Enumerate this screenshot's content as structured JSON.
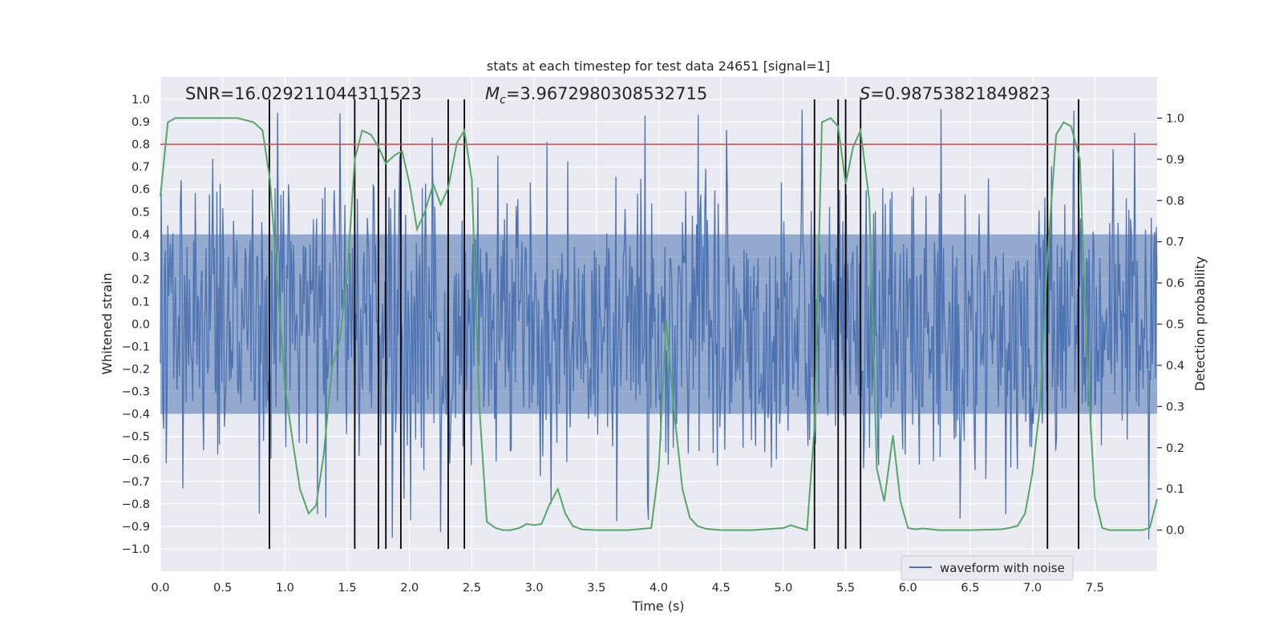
{
  "chart_data": {
    "type": "line",
    "title": "stats at each timestep for test data 24651 [signal=1]",
    "xlabel": "Time (s)",
    "ylabel_left": "Whitened strain",
    "ylabel_right": "Detection probability",
    "xlim": [
      0.0,
      8.0
    ],
    "ylim_left": [
      -1.1,
      1.1
    ],
    "ylim_right": [
      -0.1,
      1.1
    ],
    "x_ticks": [
      "0.0",
      "0.5",
      "1.0",
      "1.5",
      "2.0",
      "2.5",
      "3.0",
      "3.5",
      "4.0",
      "4.5",
      "5.0",
      "5.5",
      "6.0",
      "6.5",
      "7.0",
      "7.5"
    ],
    "x_tick_values": [
      0.0,
      0.5,
      1.0,
      1.5,
      2.0,
      2.5,
      3.0,
      3.5,
      4.0,
      4.5,
      5.0,
      5.5,
      6.0,
      6.5,
      7.0,
      7.5
    ],
    "y_left_ticks": [
      "1.0",
      "0.9",
      "0.8",
      "0.7",
      "0.6",
      "0.5",
      "0.4",
      "0.3",
      "0.2",
      "0.1",
      "0.0",
      "−0.1",
      "−0.2",
      "−0.3",
      "−0.4",
      "−0.5",
      "−0.6",
      "−0.7",
      "−0.8",
      "−0.9",
      "−1.0"
    ],
    "y_left_tick_values": [
      1.0,
      0.9,
      0.8,
      0.7,
      0.6,
      0.5,
      0.4,
      0.3,
      0.2,
      0.1,
      0.0,
      -0.1,
      -0.2,
      -0.3,
      -0.4,
      -0.5,
      -0.6,
      -0.7,
      -0.8,
      -0.9,
      -1.0
    ],
    "y_right_ticks": [
      "1.0",
      "0.9",
      "0.8",
      "0.7",
      "0.6",
      "0.5",
      "0.4",
      "0.3",
      "0.2",
      "0.1",
      "0.0"
    ],
    "y_right_tick_values": [
      1.0,
      0.9,
      0.8,
      0.7,
      0.6,
      0.5,
      0.4,
      0.3,
      0.2,
      0.1,
      0.0
    ],
    "annotations": {
      "snr": "SNR=16.029211044311523",
      "mc_symbol": "M",
      "mc_sub": "c",
      "mc_value": "=3.9672980308532715",
      "s_symbol": "S",
      "s_value": "=0.98753821849823"
    },
    "threshold": 0.8,
    "vertical_lines": [
      0.875,
      1.56,
      1.75,
      1.81,
      1.93,
      2.31,
      2.44,
      5.25,
      5.44,
      5.5,
      5.62,
      7.12,
      7.37
    ],
    "waveform": {
      "name": "waveform with noise",
      "duration": 8.0,
      "sample_count": 1200,
      "envelope_min": -0.4,
      "envelope_max": 0.4,
      "spike_peaks_max": 0.97,
      "spike_peaks_min": -0.96
    },
    "probability": {
      "name": "detection probability",
      "x": [
        0.0,
        0.06,
        0.12,
        0.25,
        0.5,
        0.62,
        0.75,
        0.82,
        0.88,
        0.94,
        1.0,
        1.06,
        1.12,
        1.19,
        1.25,
        1.31,
        1.38,
        1.44,
        1.5,
        1.56,
        1.62,
        1.69,
        1.75,
        1.81,
        1.88,
        1.94,
        2.0,
        2.06,
        2.12,
        2.19,
        2.25,
        2.31,
        2.38,
        2.44,
        2.5,
        2.56,
        2.62,
        2.69,
        2.75,
        2.81,
        2.88,
        2.94,
        3.0,
        3.06,
        3.12,
        3.19,
        3.25,
        3.31,
        3.38,
        3.5,
        3.75,
        3.94,
        4.0,
        4.06,
        4.12,
        4.19,
        4.25,
        4.31,
        4.38,
        4.5,
        4.75,
        5.0,
        5.06,
        5.12,
        5.19,
        5.25,
        5.31,
        5.38,
        5.44,
        5.5,
        5.56,
        5.62,
        5.69,
        5.75,
        5.81,
        5.88,
        5.94,
        6.0,
        6.06,
        6.12,
        6.19,
        6.25,
        6.5,
        6.75,
        6.81,
        6.88,
        6.94,
        7.0,
        7.06,
        7.12,
        7.19,
        7.25,
        7.31,
        7.38,
        7.44,
        7.5,
        7.56,
        7.62,
        7.69,
        7.75,
        7.81,
        7.88,
        7.94,
        8.0
      ],
      "y": [
        0.81,
        0.99,
        1.0,
        1.0,
        1.0,
        1.0,
        0.99,
        0.97,
        0.85,
        0.6,
        0.35,
        0.22,
        0.1,
        0.04,
        0.06,
        0.18,
        0.4,
        0.46,
        0.62,
        0.9,
        0.97,
        0.96,
        0.93,
        0.89,
        0.91,
        0.92,
        0.84,
        0.73,
        0.77,
        0.84,
        0.79,
        0.83,
        0.94,
        0.97,
        0.85,
        0.3,
        0.02,
        0.005,
        0.0,
        0.0,
        0.005,
        0.015,
        0.012,
        0.015,
        0.06,
        0.1,
        0.04,
        0.01,
        0.002,
        0.0,
        0.0,
        0.005,
        0.15,
        0.51,
        0.3,
        0.1,
        0.03,
        0.01,
        0.003,
        0.0,
        0.0,
        0.005,
        0.012,
        0.006,
        0.0,
        0.25,
        0.99,
        1.0,
        0.98,
        0.84,
        0.93,
        0.97,
        0.8,
        0.15,
        0.07,
        0.23,
        0.07,
        0.005,
        0.002,
        0.004,
        0.002,
        0.0,
        0.0,
        0.002,
        0.005,
        0.01,
        0.04,
        0.14,
        0.3,
        0.66,
        0.96,
        0.99,
        0.98,
        0.9,
        0.4,
        0.08,
        0.005,
        0.0,
        0.0,
        0.0,
        0.0,
        0.0,
        0.005,
        0.075
      ]
    },
    "legend": {
      "entries": [
        "waveform with noise"
      ],
      "placement": "lower-right"
    },
    "grid": true,
    "colors": {
      "waveform": "#4c72b0",
      "probability": "#55a868",
      "threshold": "#c44e52",
      "vlines": "#000000",
      "plot_bg": "#eaeaf2",
      "grid": "#ffffff"
    }
  }
}
